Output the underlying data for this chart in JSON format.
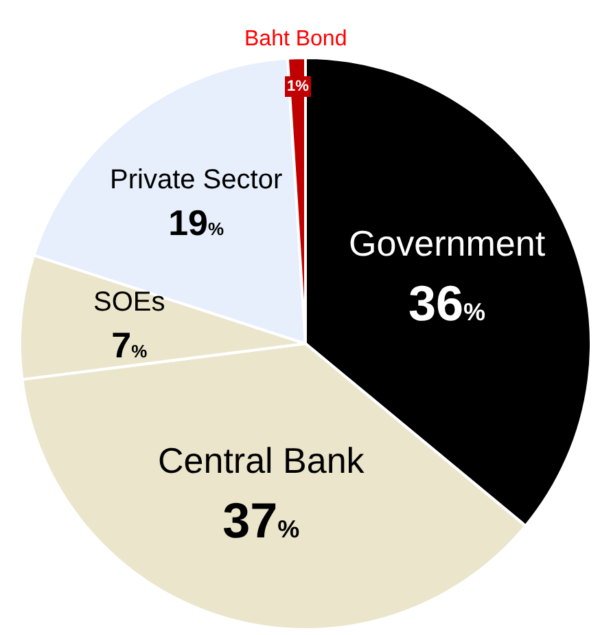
{
  "chart_data": {
    "type": "pie",
    "categories": [
      "Government",
      "Central Bank",
      "SOEs",
      "Private Sector",
      "Baht Bond"
    ],
    "values": [
      36,
      37,
      7,
      19,
      1
    ],
    "value_labels": [
      "36%",
      "37%",
      "7%",
      "19%",
      "1%"
    ],
    "colors": [
      "#000000",
      "#ebe5cc",
      "#ebe5cc",
      "#e6effb",
      "#c00000"
    ],
    "legend": false
  }
}
